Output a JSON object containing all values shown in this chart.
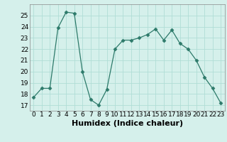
{
  "x": [
    0,
    1,
    2,
    3,
    4,
    5,
    6,
    7,
    8,
    9,
    10,
    11,
    12,
    13,
    14,
    15,
    16,
    17,
    18,
    19,
    20,
    21,
    22,
    23
  ],
  "y": [
    17.7,
    18.5,
    18.5,
    23.9,
    25.3,
    25.2,
    20.0,
    17.5,
    17.0,
    18.4,
    22.0,
    22.8,
    22.8,
    23.0,
    23.3,
    23.8,
    22.8,
    23.7,
    22.5,
    22.0,
    21.0,
    19.5,
    18.5,
    17.2
  ],
  "line_color": "#2d7a6a",
  "marker": "D",
  "marker_size": 2.5,
  "bg_color": "#d5f0eb",
  "grid_color": "#b0ddd6",
  "xlabel": "Humidex (Indice chaleur)",
  "xlim": [
    -0.5,
    23.5
  ],
  "ylim": [
    16.5,
    26.0
  ],
  "yticks": [
    17,
    18,
    19,
    20,
    21,
    22,
    23,
    24,
    25
  ],
  "xticks": [
    0,
    1,
    2,
    3,
    4,
    5,
    6,
    7,
    8,
    9,
    10,
    11,
    12,
    13,
    14,
    15,
    16,
    17,
    18,
    19,
    20,
    21,
    22,
    23
  ],
  "tick_fontsize": 6.5,
  "xlabel_fontsize": 8,
  "label_color": "#000000"
}
